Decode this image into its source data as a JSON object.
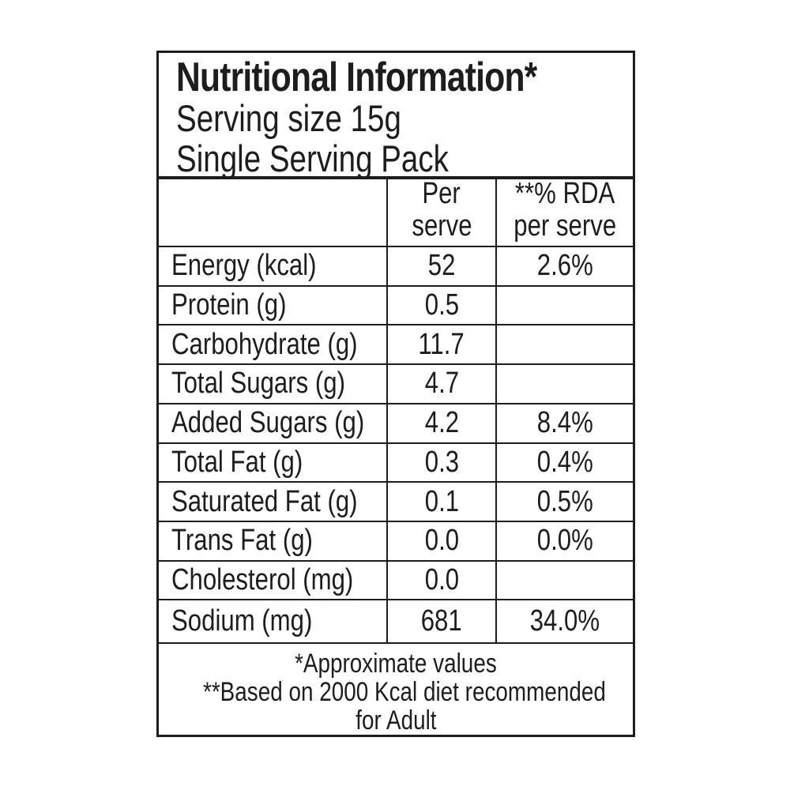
{
  "colors": {
    "text": "#1d1d1d",
    "border": "#1d1d1d",
    "background": "#ffffff"
  },
  "label": {
    "title": "Nutritional Information*",
    "serving_size": "Serving size 15g",
    "pack_type": "Single Serving Pack"
  },
  "table": {
    "headers": {
      "per_serve_line1": "Per",
      "per_serve_line2": "serve",
      "rda_line1": "**% RDA",
      "rda_line2": "per serve"
    },
    "rows": [
      {
        "label": "Energy (kcal)",
        "per_serve": "52",
        "rda": "2.6%"
      },
      {
        "label": "Protein (g)",
        "per_serve": "0.5",
        "rda": ""
      },
      {
        "label": "Carbohydrate (g)",
        "per_serve": "11.7",
        "rda": ""
      },
      {
        "label": "Total Sugars (g)",
        "per_serve": "4.7",
        "rda": ""
      },
      {
        "label": "Added Sugars (g)",
        "per_serve": "4.2",
        "rda": "8.4%"
      },
      {
        "label": "Total Fat (g)",
        "per_serve": "0.3",
        "rda": "0.4%"
      },
      {
        "label": "Saturated Fat (g)",
        "per_serve": "0.1",
        "rda": "0.5%"
      },
      {
        "label": "Trans Fat (g)",
        "per_serve": "0.0",
        "rda": "0.0%"
      },
      {
        "label": "Cholesterol (mg)",
        "per_serve": "0.0",
        "rda": ""
      },
      {
        "label": "Sodium (mg)",
        "per_serve": "681",
        "rda": "34.0%"
      }
    ]
  },
  "footnotes": {
    "line1": "*Approximate values",
    "line2": "**Based on 2000 Kcal diet recommended",
    "line3": "for Adult"
  }
}
